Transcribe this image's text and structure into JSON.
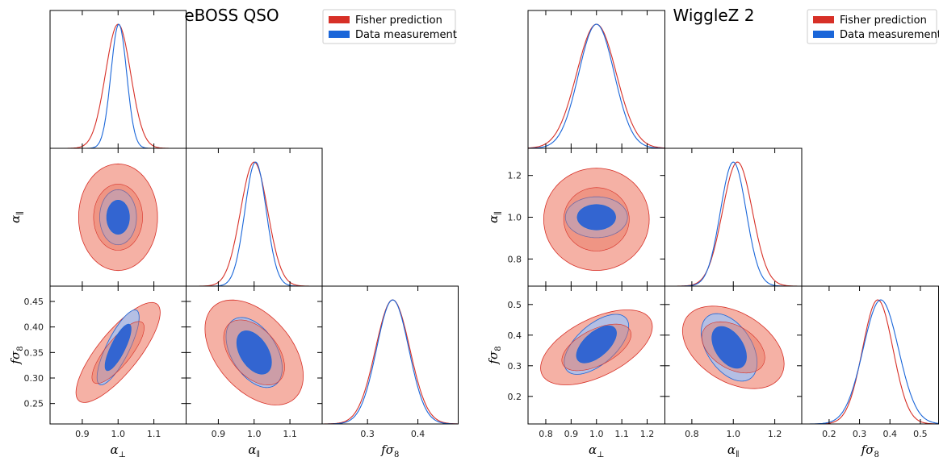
{
  "chart_data": [
    {
      "type": "corner",
      "title": "eBOSS QSO",
      "legend": {
        "position": "top-right",
        "entries": [
          "Fisher prediction",
          "Data measurement"
        ]
      },
      "series": [
        {
          "name": "Fisher prediction",
          "color": "#d73027",
          "fill_inner": "#e8735e",
          "fill_outer": "#f4a99b"
        },
        {
          "name": "Data measurement",
          "color": "#1a66d9",
          "fill_inner": "#2a62d3",
          "fill_outer": "#a8c2ee"
        }
      ],
      "parameters": [
        {
          "label": "α⊥",
          "label_base": "α",
          "label_sub": "⊥",
          "range": [
            0.81,
            1.19
          ],
          "ticks": [
            "0.9",
            "1.0",
            "1.1"
          ]
        },
        {
          "label": "α∥",
          "label_base": "α",
          "label_sub": "∥",
          "range": [
            0.81,
            1.19
          ],
          "ticks": [
            "0.9",
            "1.0",
            "1.1"
          ]
        },
        {
          "label": "fσ8",
          "label_base": "fσ",
          "label_sub": "8",
          "range": [
            0.21,
            0.48
          ],
          "ticks": [
            "0.3",
            "0.4"
          ],
          "left_ticks": [
            "0.25",
            "0.30",
            "0.35",
            "0.40",
            "0.45"
          ]
        }
      ],
      "marginals": [
        {
          "parameter": "α⊥",
          "fisher": {
            "mean": 1.0,
            "sigma": 0.035
          },
          "data": {
            "mean": 1.002,
            "sigma": 0.022
          }
        },
        {
          "parameter": "α∥",
          "fisher": {
            "mean": 1.0,
            "sigma": 0.038
          },
          "data": {
            "mean": 1.004,
            "sigma": 0.03
          }
        },
        {
          "parameter": "fσ8",
          "fisher": {
            "mean": 0.35,
            "sigma": 0.034
          },
          "data": {
            "mean": 0.35,
            "sigma": 0.032
          }
        }
      ],
      "contours": [
        {
          "x": "α⊥",
          "y": "α∥",
          "fisher": {
            "center": [
              1.0,
              1.0
            ],
            "sigma": [
              0.045,
              0.06
            ],
            "rho": 0.0
          },
          "data": {
            "center": [
              1.0,
              1.0
            ],
            "sigma": [
              0.021,
              0.031
            ],
            "rho": 0.0
          }
        },
        {
          "x": "α⊥",
          "y": "fσ8",
          "fisher": {
            "center": [
              1.0,
              0.35
            ],
            "sigma": [
              0.048,
              0.04
            ],
            "rho": 0.8
          },
          "data": {
            "center": [
              1.0,
              0.36
            ],
            "sigma": [
              0.024,
              0.03
            ],
            "rho": 0.8
          }
        },
        {
          "x": "α∥",
          "y": "fσ8",
          "fisher": {
            "center": [
              1.0,
              0.35
            ],
            "sigma": [
              0.056,
              0.042
            ],
            "rho": -0.45
          },
          "data": {
            "center": [
              1.0,
              0.35
            ],
            "sigma": [
              0.032,
              0.028
            ],
            "rho": -0.45
          }
        }
      ]
    },
    {
      "type": "corner",
      "title": "WiggleZ 2",
      "legend": {
        "position": "top-right",
        "entries": [
          "Fisher prediction",
          "Data measurement"
        ]
      },
      "series": [
        {
          "name": "Fisher prediction",
          "color": "#d73027",
          "fill_inner": "#e8735e",
          "fill_outer": "#f4a99b"
        },
        {
          "name": "Data measurement",
          "color": "#1a66d9",
          "fill_inner": "#2a62d3",
          "fill_outer": "#a8c2ee"
        }
      ],
      "parameters": [
        {
          "label": "α⊥",
          "label_base": "α",
          "label_sub": "⊥",
          "range": [
            0.73,
            1.27
          ],
          "ticks": [
            "0.8",
            "0.9",
            "1.0",
            "1.1",
            "1.2"
          ]
        },
        {
          "label": "α∥",
          "label_base": "α",
          "label_sub": "∥",
          "range": [
            0.67,
            1.33
          ],
          "ticks": [
            "0.8",
            "1.0",
            "1.2"
          ],
          "left_ticks": [
            "0.8",
            "1.0",
            "1.2"
          ]
        },
        {
          "label": "fσ8",
          "label_base": "fσ",
          "label_sub": "8",
          "range": [
            0.11,
            0.56
          ],
          "ticks": [
            "0.2",
            "0.3",
            "0.4",
            "0.5"
          ],
          "left_ticks": [
            "0.2",
            "0.3",
            "0.4",
            "0.5"
          ]
        }
      ],
      "marginals": [
        {
          "parameter": "α⊥",
          "fisher": {
            "mean": 1.0,
            "sigma": 0.078
          },
          "data": {
            "mean": 1.0,
            "sigma": 0.07
          }
        },
        {
          "parameter": "α∥",
          "fisher": {
            "mean": 1.02,
            "sigma": 0.072
          },
          "data": {
            "mean": 1.0,
            "sigma": 0.062
          }
        },
        {
          "parameter": "fσ8",
          "fisher": {
            "mean": 0.36,
            "sigma": 0.05
          },
          "data": {
            "mean": 0.37,
            "sigma": 0.058
          }
        }
      ],
      "contours": [
        {
          "x": "α⊥",
          "y": "α∥",
          "fisher": {
            "center": [
              1.0,
              0.99
            ],
            "sigma": [
              0.085,
              0.1
            ],
            "rho": 0.0
          },
          "data": {
            "center": [
              1.0,
              1.0
            ],
            "sigma": [
              0.05,
              0.04
            ],
            "rho": 0.0
          }
        },
        {
          "x": "α⊥",
          "y": "fσ8",
          "fisher": {
            "center": [
              1.0,
              0.36
            ],
            "sigma": [
              0.09,
              0.05
            ],
            "rho": 0.55
          },
          "data": {
            "center": [
              1.0,
              0.37
            ],
            "sigma": [
              0.052,
              0.04
            ],
            "rho": 0.6
          }
        },
        {
          "x": "α∥",
          "y": "fσ8",
          "fisher": {
            "center": [
              1.0,
              0.36
            ],
            "sigma": [
              0.1,
              0.055
            ],
            "rho": -0.4
          },
          "data": {
            "center": [
              0.98,
              0.36
            ],
            "sigma": [
              0.055,
              0.045
            ],
            "rho": -0.45
          }
        }
      ]
    }
  ]
}
